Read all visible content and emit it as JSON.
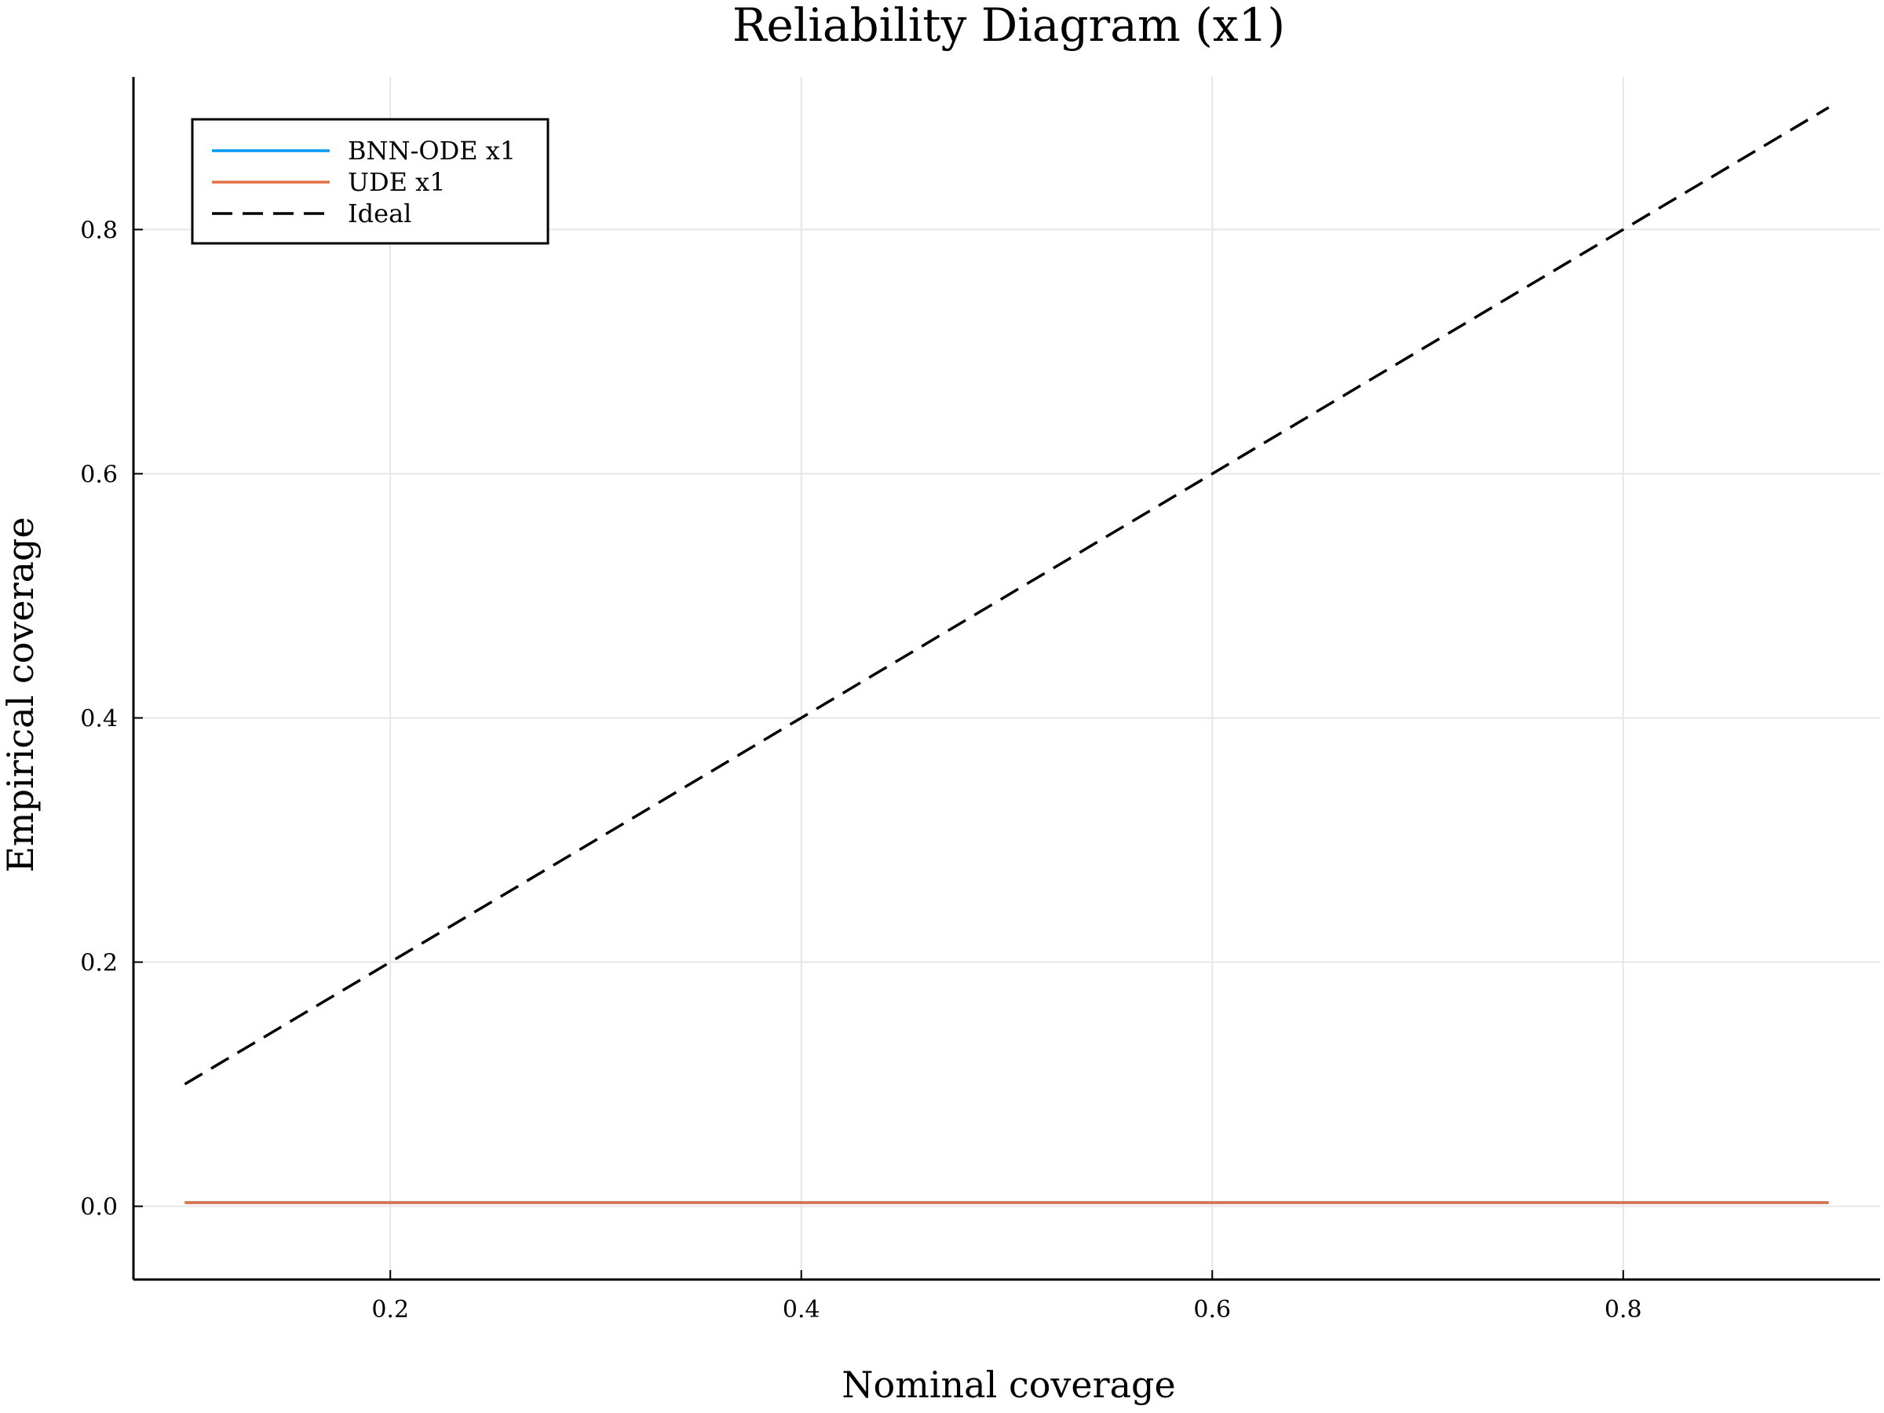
{
  "chart_data": {
    "type": "line",
    "title": "Reliability Diagram (x1)",
    "xlabel": "Nominal coverage",
    "ylabel": "Empirical coverage",
    "xlim": [
      0.075,
      0.925
    ],
    "ylim": [
      -0.06,
      0.925
    ],
    "xticks": [
      0.2,
      0.4,
      0.6,
      0.8
    ],
    "yticks": [
      0.0,
      0.2,
      0.4,
      0.6,
      0.8
    ],
    "xtick_labels": [
      "0.2",
      "0.4",
      "0.6",
      "0.8"
    ],
    "ytick_labels": [
      "0.0",
      "0.2",
      "0.4",
      "0.6",
      "0.8"
    ],
    "grid": true,
    "legend_position": "top-left",
    "x": [
      0.1,
      0.2,
      0.3,
      0.4,
      0.5,
      0.6,
      0.7,
      0.8,
      0.9
    ],
    "series": [
      {
        "name": "BNN-ODE x1",
        "color": "#009AFA",
        "dash": "solid",
        "values": [
          0.003,
          0.003,
          0.003,
          0.003,
          0.003,
          0.003,
          0.003,
          0.003,
          0.003
        ]
      },
      {
        "name": "UDE x1",
        "color": "#E26F46",
        "dash": "solid",
        "values": [
          0.003,
          0.003,
          0.003,
          0.003,
          0.003,
          0.003,
          0.003,
          0.003,
          0.003
        ]
      },
      {
        "name": "Ideal",
        "color": "#000000",
        "dash": "dashed",
        "values": [
          0.1,
          0.2,
          0.3,
          0.4,
          0.5,
          0.6,
          0.7,
          0.8,
          0.9
        ]
      }
    ]
  }
}
